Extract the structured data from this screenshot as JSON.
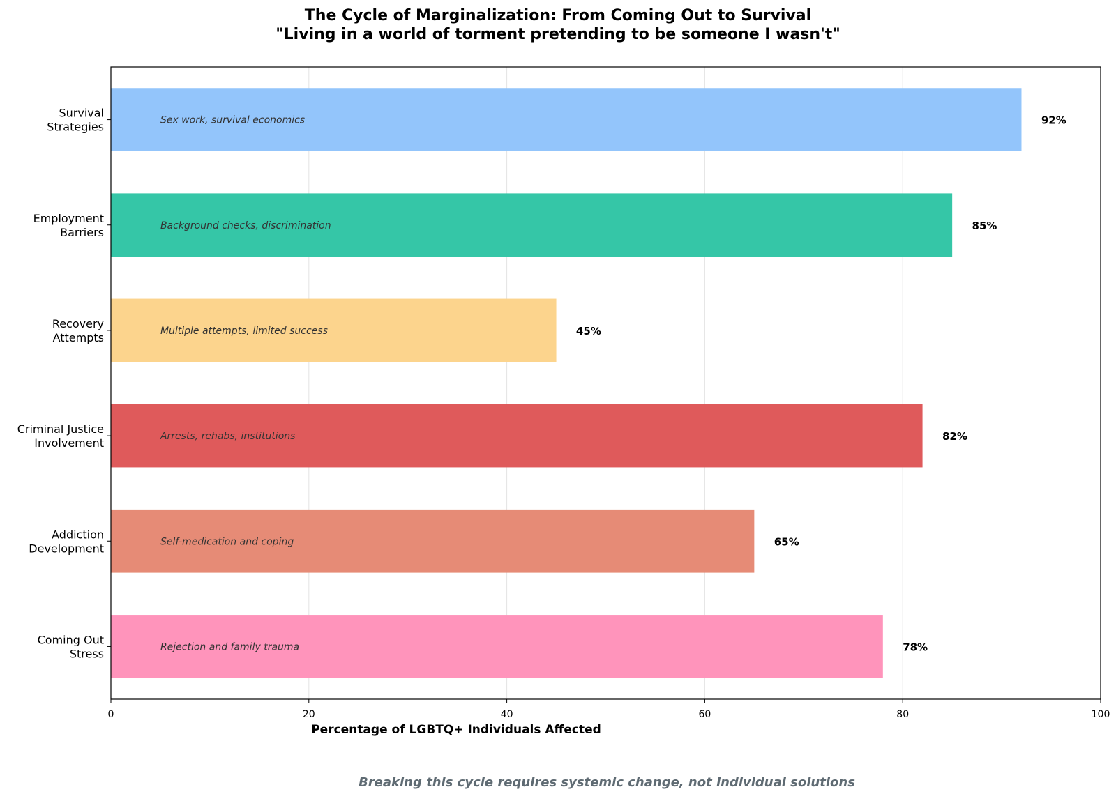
{
  "chart_data": {
    "type": "bar",
    "orientation": "horizontal",
    "title": "The Cycle of Marginalization: From Coming Out to Survival",
    "subtitle": "\"Living in a world of torment pretending to be someone I wasn't\"",
    "xlabel": "Percentage of LGBTQ+ Individuals Affected",
    "ylabel": "",
    "xlim": [
      0,
      100
    ],
    "xticks": [
      0,
      20,
      40,
      60,
      80,
      100
    ],
    "grid": "vertical",
    "value_suffix": "%",
    "categories": [
      [
        "Coming Out",
        "Stress"
      ],
      [
        "Addiction",
        "Development"
      ],
      [
        "Criminal Justice",
        "Involvement"
      ],
      [
        "Recovery",
        "Attempts"
      ],
      [
        "Employment",
        "Barriers"
      ],
      [
        "Survival",
        "Strategies"
      ]
    ],
    "values": [
      78,
      65,
      82,
      45,
      85,
      92
    ],
    "annotations": [
      "Rejection and family trauma",
      "Self-medication and coping",
      "Arrests, rehabs, institutions",
      "Multiple attempts, limited success",
      "Background checks, discrimination",
      "Sex work, survival economics"
    ],
    "colors": [
      "#ff94bb",
      "#e68b76",
      "#df5a5b",
      "#fcd48d",
      "#35c6a7",
      "#93c5fb"
    ],
    "footer": "Breaking this cycle requires systemic change, not individual solutions",
    "footer_color": "#5f6b73"
  }
}
